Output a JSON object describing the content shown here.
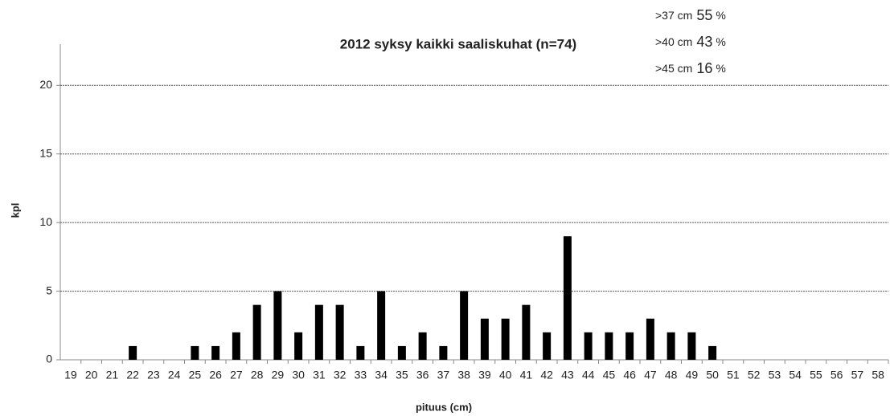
{
  "chart_data": {
    "type": "bar",
    "title": "2012 syksy kaikki saaliskuhat (n=74)",
    "x_label": "pituus (cm)",
    "y_label": "kpl",
    "categories": [
      "19",
      "20",
      "21",
      "22",
      "23",
      "24",
      "25",
      "26",
      "27",
      "28",
      "29",
      "30",
      "31",
      "32",
      "33",
      "34",
      "35",
      "36",
      "37",
      "38",
      "39",
      "40",
      "41",
      "42",
      "43",
      "44",
      "45",
      "46",
      "47",
      "48",
      "49",
      "50",
      "51",
      "52",
      "53",
      "54",
      "55",
      "56",
      "57",
      "58"
    ],
    "values": [
      0,
      0,
      0,
      1,
      0,
      0,
      1,
      1,
      2,
      4,
      5,
      2,
      4,
      4,
      1,
      5,
      1,
      2,
      1,
      5,
      3,
      3,
      4,
      2,
      9,
      2,
      2,
      2,
      3,
      2,
      2,
      1,
      0,
      0,
      0,
      0,
      0,
      0,
      0,
      0
    ],
    "color": "#000000",
    "ylim": [
      0,
      23
    ],
    "yticks": [
      0,
      5,
      10,
      15,
      20
    ],
    "grid": true,
    "annotations": [
      {
        "prefix": ">37 cm",
        "value": 55,
        "suffix": "%"
      },
      {
        "prefix": ">40 cm",
        "value": 43,
        "suffix": "%"
      },
      {
        "prefix": ">45 cm",
        "value": 16,
        "suffix": "%"
      }
    ]
  }
}
